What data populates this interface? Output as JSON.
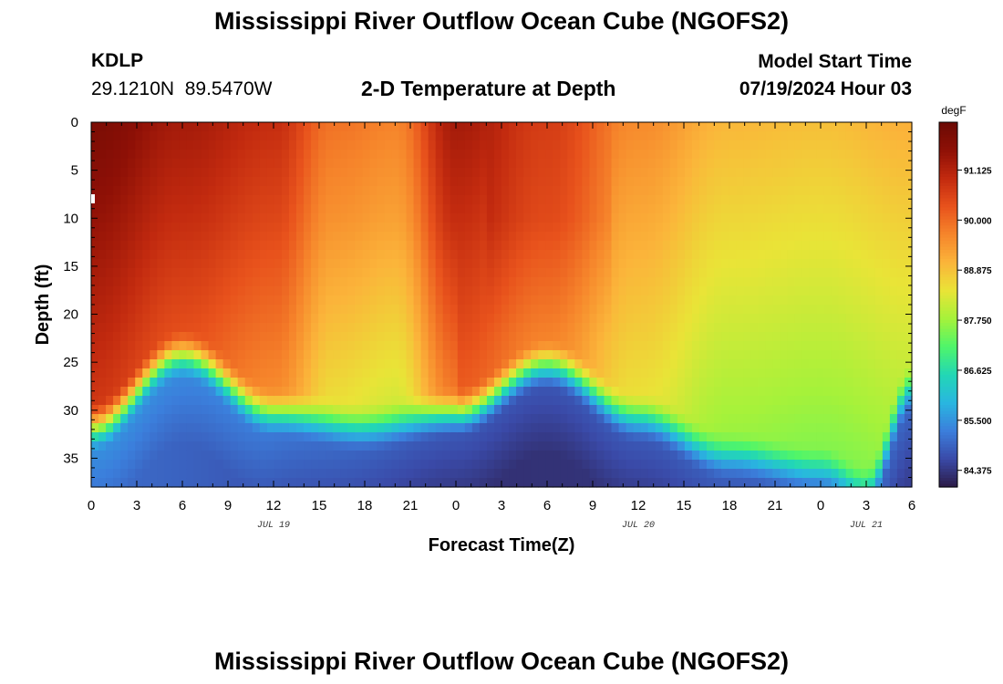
{
  "page": {
    "title": "Mississippi River Outflow Ocean Cube (NGOFS2)",
    "title_repeat": "Mississippi River Outflow Ocean Cube (NGOFS2)",
    "station_id": "KDLP",
    "station_coords": "29.1210N  89.5470W",
    "subtitle": "2-D Temperature at Depth",
    "model_start_label": "Model Start Time",
    "model_start_value": "07/19/2024 Hour 03"
  },
  "chart_data": {
    "type": "heatmap",
    "title": "2-D Temperature at Depth",
    "xlabel": "Forecast Time(Z)",
    "ylabel": "Depth (ft)",
    "x_tick_labels": [
      "0",
      "3",
      "6",
      "9",
      "12",
      "15",
      "18",
      "21",
      "0",
      "3",
      "6",
      "9",
      "12",
      "15",
      "18",
      "21",
      "0",
      "3",
      "6"
    ],
    "x_range_hours": [
      0,
      54
    ],
    "date_labels": [
      {
        "text": "JUL 19",
        "hour": 12
      },
      {
        "text": "JUL 20",
        "hour": 36
      },
      {
        "text": "JUL 21",
        "hour": 51
      }
    ],
    "y_ticks": [
      0,
      5,
      10,
      15,
      20,
      25,
      30,
      35
    ],
    "y_range_ft": [
      0,
      38
    ],
    "y_inverted": true,
    "colorbar": {
      "unit": "degF",
      "ticks": [
        "91.125",
        "90.000",
        "88.875",
        "87.750",
        "86.625",
        "85.500",
        "84.375"
      ],
      "range": [
        84.0,
        92.2
      ]
    },
    "colormap": [
      "#2c1b47",
      "#3a4aa8",
      "#3b7fdc",
      "#29b6e0",
      "#22d7b5",
      "#4ff56a",
      "#a6f23a",
      "#e9e437",
      "#fbb43a",
      "#f6852b",
      "#e8521c",
      "#c22a0f",
      "#8e1006",
      "#6b0a04"
    ],
    "model": {
      "surface_temp_key_hours": [
        0,
        6,
        12,
        16,
        20,
        24,
        30,
        36,
        42,
        48,
        54
      ],
      "surface_temp_values": [
        91.9,
        91.3,
        90.9,
        89.9,
        89.7,
        91.3,
        90.6,
        89.6,
        89.0,
        88.9,
        89.1
      ],
      "thermocline_top_key_hours": [
        0,
        6,
        12,
        18,
        24,
        30,
        36,
        42,
        48,
        51,
        54
      ],
      "thermocline_top_values_ft": [
        29,
        21.5,
        27.5,
        29,
        27.5,
        22.5,
        28,
        32,
        33.5,
        35.5,
        25
      ],
      "bottom_temp_values": [
        85.0,
        84.3,
        84.5
      ]
    }
  }
}
